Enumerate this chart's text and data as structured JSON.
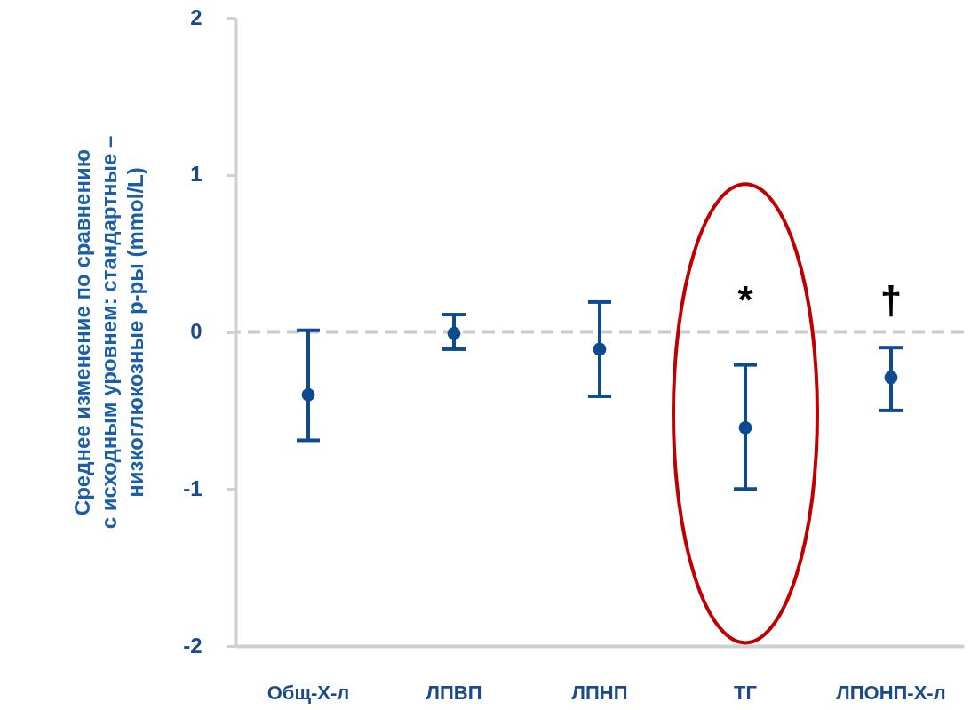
{
  "chart_data": {
    "type": "scatter",
    "ylabel": [
      "Среднее изменение по сравнению",
      "с исходным уровнем:  стандартные –",
      "низкоглюкозные р-ры (mmol/L)"
    ],
    "categories": [
      "Общ-Х-л",
      "ЛПВП",
      "ЛПНП",
      "ТГ",
      "ЛПОНП-Х-л"
    ],
    "series": [
      {
        "color": "#0d4a8f",
        "values": [
          -0.4,
          -0.01,
          -0.11,
          -0.61,
          -0.29
        ],
        "errors": [
          [
            -0.69,
            0.01
          ],
          [
            -0.11,
            0.11
          ],
          [
            -0.41,
            0.19
          ],
          [
            -1.0,
            -0.21
          ],
          [
            -0.5,
            -0.1
          ]
        ]
      }
    ],
    "ylim": [
      -2,
      2
    ],
    "yticks": [
      -2,
      -1,
      0,
      1,
      2
    ],
    "ref_lines": [
      {
        "axis": "y",
        "value": 0,
        "color": "#cccccc",
        "line_style": "dashed"
      }
    ],
    "annotations": [
      "*",
      "†"
    ],
    "marker": "circle",
    "grid": false
  }
}
